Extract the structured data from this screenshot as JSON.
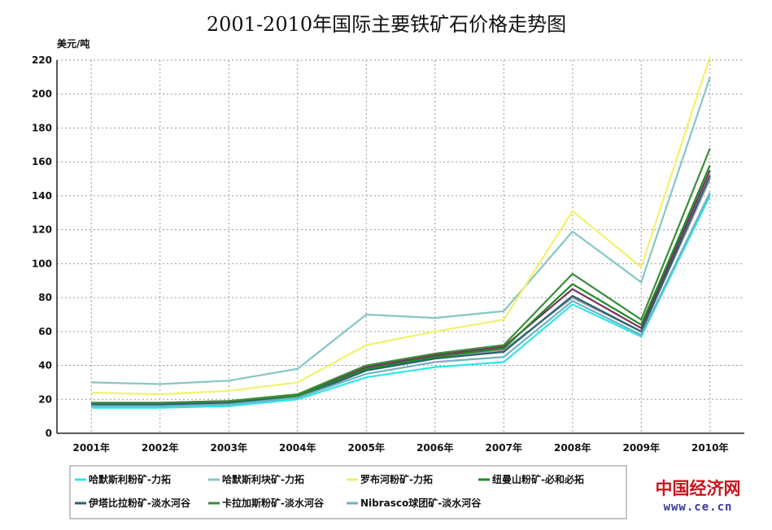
{
  "chart_data": {
    "type": "line",
    "title": "2001-2010年国际主要铁矿石价格走势图",
    "ylabel": "美元/吨",
    "xlabel": "",
    "x": [
      "2001年",
      "2002年",
      "2003年",
      "2004年",
      "2005年",
      "2006年",
      "2007年",
      "2008年",
      "2009年",
      "2010年"
    ],
    "ylim": [
      0,
      220
    ],
    "yticks": [
      0,
      20,
      40,
      60,
      80,
      100,
      120,
      140,
      160,
      180,
      200,
      220
    ],
    "grid": true,
    "legend_position": "bottom",
    "series": [
      {
        "name": "哈默斯利粉矿-力拓",
        "color": "#2ee6e6",
        "values": [
          15,
          15,
          16,
          20,
          33,
          39,
          42,
          76,
          57,
          140
        ]
      },
      {
        "name": "哈默斯利块矿-力拓",
        "color": "#86c6c6",
        "values": [
          30,
          29,
          31,
          38,
          70,
          68,
          72,
          119,
          89,
          210
        ]
      },
      {
        "name": "罗布河粉矿-力拓",
        "color": "#f2f26a",
        "values": [
          24,
          23,
          25,
          30,
          52,
          60,
          67,
          131,
          98,
          222
        ]
      },
      {
        "name": "纽曼山粉矿-必和必拓",
        "color": "#1f8a1f",
        "values": [
          17,
          17,
          18,
          22,
          38,
          45,
          50,
          88,
          64,
          158
        ]
      },
      {
        "name": "伊塔比拉粉矿-淡水河谷",
        "color": "#2a6272",
        "values": [
          17,
          17,
          18,
          21,
          37,
          44,
          48,
          81,
          60,
          152
        ]
      },
      {
        "name": "卡拉加斯粉矿-淡水河谷",
        "color": "#3c8c3c",
        "values": [
          18,
          18,
          19,
          23,
          40,
          47,
          52,
          94,
          67,
          168
        ]
      },
      {
        "name": "Nibrasco球团矿-淡水河谷",
        "color": "#6fb2c2",
        "values": [
          16,
          16,
          17,
          21,
          35,
          42,
          45,
          78,
          58,
          142
        ]
      }
    ]
  },
  "extra_lines": [
    {
      "color": "#7a2f5e",
      "values": [
        18,
        18,
        19,
        22,
        39,
        46,
        51,
        85,
        62,
        155
      ]
    },
    {
      "color": "#9a9aa6",
      "values": [
        17,
        17,
        18,
        21,
        37,
        44,
        49,
        80,
        60,
        150
      ]
    }
  ],
  "watermark": {
    "brand": "中国经济网",
    "url": "www.ce.cn"
  }
}
